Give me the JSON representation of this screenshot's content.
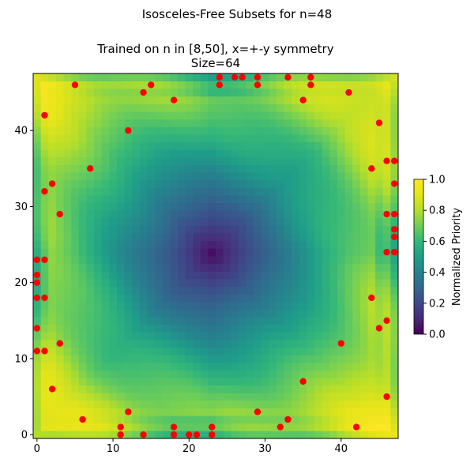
{
  "figure": {
    "suptitle": "Isosceles-Free Subsets for n=48",
    "title_line1": "Trained on n in [8,50],  x=+-y symmetry",
    "title_line2": "Size=64"
  },
  "chart_data": {
    "type": "heatmap",
    "title": "Isosceles-Free Subsets for n=48",
    "subtitle": "Trained on n in [8,50],  x=+-y symmetry",
    "annotation": "Size=64",
    "grid_n": 48,
    "xlim": [
      0,
      47
    ],
    "ylim": [
      0,
      47
    ],
    "x_ticks": [
      0,
      10,
      20,
      30,
      40
    ],
    "y_ticks": [
      0,
      10,
      20,
      30,
      40
    ],
    "colormap": "viridis",
    "colorbar": {
      "label": "Normalized Priority",
      "range": [
        0.0,
        1.0
      ],
      "ticks": [
        "0.0",
        "0.2",
        "0.4",
        "0.6",
        "0.8",
        "1.0"
      ]
    },
    "heatmap_pattern": "distance from center, low (dark purple) at center ~(23,24) rising to high (yellow) near edges",
    "marker_color": "#ff0000",
    "points": [
      [
        0,
        23
      ],
      [
        0,
        21
      ],
      [
        0,
        20
      ],
      [
        0,
        18
      ],
      [
        0,
        14
      ],
      [
        0,
        11
      ],
      [
        1,
        42
      ],
      [
        1,
        32
      ],
      [
        1,
        23
      ],
      [
        1,
        18
      ],
      [
        1,
        11
      ],
      [
        2,
        33
      ],
      [
        2,
        6
      ],
      [
        3,
        29
      ],
      [
        3,
        12
      ],
      [
        5,
        46
      ],
      [
        6,
        2
      ],
      [
        7,
        35
      ],
      [
        11,
        1
      ],
      [
        11,
        0
      ],
      [
        12,
        40
      ],
      [
        12,
        3
      ],
      [
        14,
        45
      ],
      [
        14,
        0
      ],
      [
        15,
        46
      ],
      [
        18,
        44
      ],
      [
        18,
        1
      ],
      [
        18,
        0
      ],
      [
        20,
        0
      ],
      [
        21,
        0
      ],
      [
        23,
        1
      ],
      [
        23,
        0
      ],
      [
        24,
        47
      ],
      [
        24,
        46
      ],
      [
        26,
        47
      ],
      [
        27,
        47
      ],
      [
        29,
        47
      ],
      [
        29,
        46
      ],
      [
        29,
        3
      ],
      [
        32,
        1
      ],
      [
        33,
        47
      ],
      [
        33,
        2
      ],
      [
        35,
        44
      ],
      [
        35,
        7
      ],
      [
        36,
        47
      ],
      [
        36,
        46
      ],
      [
        40,
        12
      ],
      [
        41,
        45
      ],
      [
        42,
        1
      ],
      [
        44,
        35
      ],
      [
        44,
        18
      ],
      [
        45,
        41
      ],
      [
        45,
        14
      ],
      [
        46,
        36
      ],
      [
        46,
        29
      ],
      [
        46,
        24
      ],
      [
        46,
        15
      ],
      [
        46,
        5
      ],
      [
        47,
        36
      ],
      [
        47,
        33
      ],
      [
        47,
        29
      ],
      [
        47,
        27
      ],
      [
        47,
        26
      ],
      [
        47,
        24
      ]
    ]
  }
}
